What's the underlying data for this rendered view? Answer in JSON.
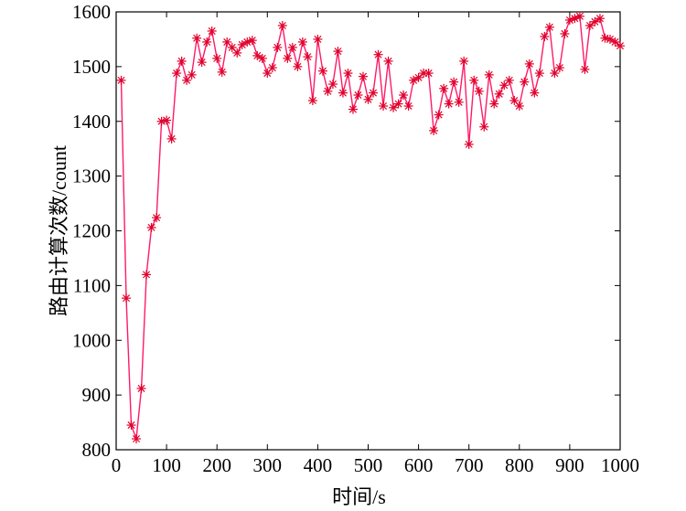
{
  "chart_data": {
    "type": "line",
    "xlabel": "时间/s",
    "ylabel": "路由计算次数/count",
    "xlim": [
      0,
      1000
    ],
    "ylim": [
      800,
      1600
    ],
    "x_ticks": [
      0,
      100,
      200,
      300,
      400,
      500,
      600,
      700,
      800,
      900,
      1000
    ],
    "y_ticks": [
      800,
      900,
      1000,
      1100,
      1200,
      1300,
      1400,
      1500,
      1600
    ],
    "grid": false,
    "line_color": "#ff1a66",
    "marker_color": "#e0002a",
    "marker": "asterisk",
    "x": [
      10,
      20,
      30,
      40,
      50,
      60,
      70,
      80,
      90,
      100,
      110,
      120,
      130,
      140,
      150,
      160,
      170,
      180,
      190,
      200,
      210,
      220,
      230,
      240,
      250,
      260,
      270,
      280,
      290,
      300,
      310,
      320,
      330,
      340,
      350,
      360,
      370,
      380,
      390,
      400,
      410,
      420,
      430,
      440,
      450,
      460,
      470,
      480,
      490,
      500,
      510,
      520,
      530,
      540,
      550,
      560,
      570,
      580,
      590,
      600,
      610,
      620,
      630,
      640,
      650,
      660,
      670,
      680,
      690,
      700,
      710,
      720,
      730,
      740,
      750,
      760,
      770,
      780,
      790,
      800,
      810,
      820,
      830,
      840,
      850,
      860,
      870,
      880,
      890,
      900,
      910,
      920,
      930,
      940,
      950,
      960,
      970,
      980,
      990,
      1000
    ],
    "y": [
      1475,
      1077,
      845,
      820,
      912,
      1120,
      1206,
      1224,
      1400,
      1402,
      1368,
      1488,
      1510,
      1475,
      1485,
      1552,
      1508,
      1545,
      1565,
      1515,
      1490,
      1545,
      1535,
      1525,
      1540,
      1545,
      1548,
      1520,
      1515,
      1488,
      1498,
      1535,
      1575,
      1515,
      1535,
      1500,
      1545,
      1518,
      1438,
      1550,
      1492,
      1455,
      1468,
      1528,
      1452,
      1488,
      1422,
      1448,
      1482,
      1440,
      1452,
      1522,
      1428,
      1510,
      1425,
      1432,
      1448,
      1428,
      1475,
      1480,
      1488,
      1488,
      1383,
      1412,
      1460,
      1432,
      1472,
      1435,
      1510,
      1358,
      1475,
      1455,
      1390,
      1485,
      1432,
      1450,
      1466,
      1475,
      1438,
      1428,
      1472,
      1505,
      1452,
      1488,
      1555,
      1572,
      1488,
      1498,
      1560,
      1585,
      1588,
      1592,
      1495,
      1575,
      1582,
      1588,
      1552,
      1550,
      1545,
      1538
    ]
  }
}
